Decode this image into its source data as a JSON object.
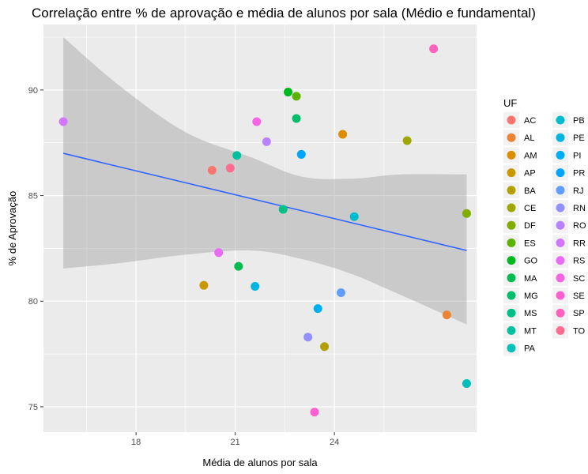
{
  "chart_data": {
    "type": "scatter",
    "title": "Correlação entre % de aprovação e média de alunos por sala (Médio e fundamental)",
    "xlabel": "Média de alunos por sala",
    "ylabel": "% de Aprovação",
    "xlim": [
      15.2,
      28.3
    ],
    "ylim": [
      73.8,
      93.1
    ],
    "x_ticks": [
      18,
      21,
      24
    ],
    "y_ticks": [
      75,
      80,
      85,
      90
    ],
    "grid": true,
    "legend_title": "UF",
    "legend_position": "right",
    "points": [
      {
        "uf": "AC",
        "x": 20.3,
        "y": 86.2,
        "color": "#F8766D"
      },
      {
        "uf": "AL",
        "x": 27.4,
        "y": 79.35,
        "color": "#EB8335"
      },
      {
        "uf": "AM",
        "x": 24.25,
        "y": 87.9,
        "color": "#DB8E00"
      },
      {
        "uf": "AP",
        "x": 20.05,
        "y": 80.75,
        "color": "#C99800"
      },
      {
        "uf": "BA",
        "x": 23.7,
        "y": 77.85,
        "color": "#B3A000"
      },
      {
        "uf": "CE",
        "x": 26.2,
        "y": 87.6,
        "color": "#9DA700"
      },
      {
        "uf": "DF",
        "x": 28.0,
        "y": 84.15,
        "color": "#82AD00"
      },
      {
        "uf": "ES",
        "x": 22.85,
        "y": 89.7,
        "color": "#5BB300"
      },
      {
        "uf": "GO",
        "x": 22.6,
        "y": 89.9,
        "color": "#00B81F"
      },
      {
        "uf": "MA",
        "x": 21.1,
        "y": 81.65,
        "color": "#00BB4E"
      },
      {
        "uf": "MG",
        "x": 22.85,
        "y": 88.65,
        "color": "#00BD6C"
      },
      {
        "uf": "MS",
        "x": 22.45,
        "y": 84.35,
        "color": "#00BF87"
      },
      {
        "uf": "MT",
        "x": 21.05,
        "y": 86.9,
        "color": "#00C0A0"
      },
      {
        "uf": "PA",
        "x": 28.0,
        "y": 76.1,
        "color": "#00BFB8"
      },
      {
        "uf": "PB",
        "x": 24.6,
        "y": 84.0,
        "color": "#00BCCD"
      },
      {
        "uf": "PE",
        "x": 21.6,
        "y": 80.7,
        "color": "#00B6E0"
      },
      {
        "uf": "PI",
        "x": 23.5,
        "y": 79.65,
        "color": "#00AEF2"
      },
      {
        "uf": "PR",
        "x": 23.0,
        "y": 86.95,
        "color": "#00A5FF"
      },
      {
        "uf": "RJ",
        "x": 24.2,
        "y": 80.4,
        "color": "#619CFF"
      },
      {
        "uf": "RN",
        "x": 23.2,
        "y": 78.3,
        "color": "#9590FF"
      },
      {
        "uf": "RO",
        "x": 21.95,
        "y": 87.55,
        "color": "#B983FF"
      },
      {
        "uf": "RR",
        "x": 15.8,
        "y": 88.5,
        "color": "#D376FF"
      },
      {
        "uf": "RS",
        "x": 20.5,
        "y": 82.3,
        "color": "#E76BF3"
      },
      {
        "uf": "SC",
        "x": 21.65,
        "y": 88.5,
        "color": "#F564E3"
      },
      {
        "uf": "SE",
        "x": 23.4,
        "y": 74.75,
        "color": "#FD61D1"
      },
      {
        "uf": "SP",
        "x": 27.0,
        "y": 91.95,
        "color": "#FF62BC"
      },
      {
        "uf": "TO",
        "x": 20.85,
        "y": 86.3,
        "color": "#FF6C91"
      }
    ],
    "trend": {
      "x_start": 15.8,
      "y_start": 87.0,
      "x_end": 28.0,
      "y_end": 82.4,
      "color": "#3366FF"
    },
    "confidence_band": {
      "x": [
        15.8,
        17.5,
        19.5,
        21.5,
        23.0,
        24.5,
        26.0,
        28.0
      ],
      "upper": [
        92.5,
        90.2,
        88.0,
        86.8,
        85.9,
        85.8,
        86.0,
        86.0
      ],
      "lower": [
        81.55,
        81.8,
        82.2,
        82.4,
        82.0,
        81.3,
        80.3,
        78.9
      ],
      "color": "#999999"
    }
  }
}
